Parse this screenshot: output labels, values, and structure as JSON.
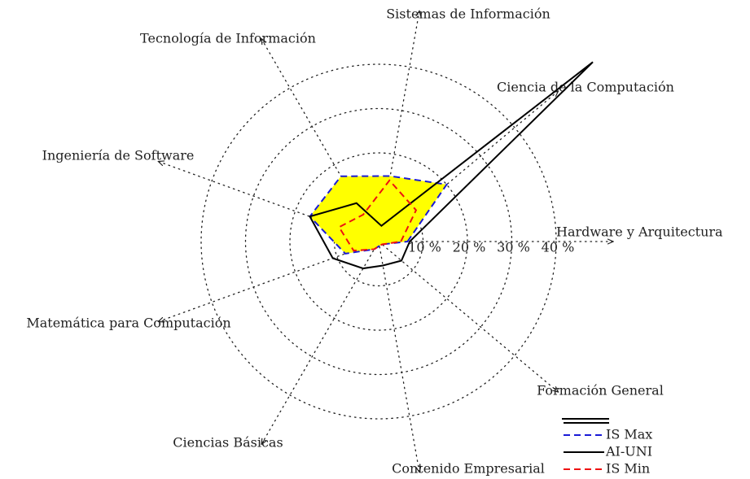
{
  "chart_data": {
    "type": "radar",
    "categories": [
      "Hardware y Arquitectura",
      "Ciencia de la Computación",
      "Sistemas de Información",
      "Tecnología de Información",
      "Ingeniería de Software",
      "Matemática para Computación",
      "Ciencias Básicas",
      "Contenido Empresarial",
      "Formación General"
    ],
    "rlim": [
      0,
      40
    ],
    "rticks": [
      {
        "value": 10,
        "label": "10 %"
      },
      {
        "value": 20,
        "label": "20 %"
      },
      {
        "value": 30,
        "label": "30 %"
      },
      {
        "value": 40,
        "label": "40 %"
      }
    ],
    "grid": true,
    "series": [
      {
        "name": "IS Max",
        "color": "#1a1ad6",
        "fill": "#ffff00",
        "dash": true,
        "values": [
          6.5,
          20,
          15,
          17,
          16.5,
          8,
          2,
          1,
          1
        ]
      },
      {
        "name": "AI-UNI",
        "color": "#000000",
        "dash": false,
        "values": [
          7,
          63,
          3.6,
          10,
          16.5,
          11,
          7,
          5.5,
          6.7
        ]
      },
      {
        "name": "IS Min",
        "color": "#ee1111",
        "dash": true,
        "values": [
          5,
          11,
          14,
          7,
          9.5,
          6,
          2,
          1,
          1
        ]
      }
    ]
  }
}
